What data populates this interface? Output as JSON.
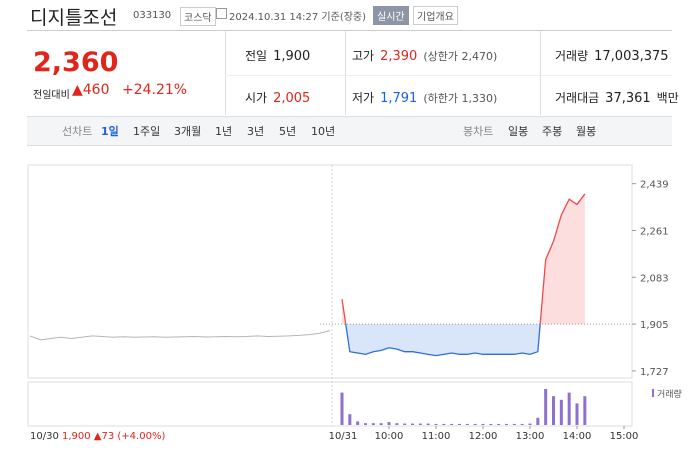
{
  "header": {
    "name": "디지틀조선",
    "code": "033130",
    "market": "코스닥",
    "timestamp": "2024.10.31 14:27 기준(장중)",
    "realtime": "실시간",
    "company_info": "기업개요"
  },
  "quote": {
    "price": "2,360",
    "change_label": "전일대비",
    "change": "▲460",
    "change_rate": "+24.21%"
  },
  "stats": [
    {
      "label": "전일",
      "value": "1,900",
      "color": "#222222"
    },
    {
      "label": "고가",
      "value": "2,390",
      "note": "(상한가 2,470)",
      "color": "#e2241b"
    },
    {
      "label": "거래량",
      "value": "17,003,375",
      "color": "#222222"
    },
    {
      "label": "시가",
      "value": "2,005",
      "color": "#e2241b"
    },
    {
      "label": "저가",
      "value": "1,791",
      "note": "(하한가 1,330)",
      "color": "#1b62d9"
    },
    {
      "label": "거래대금",
      "value": "37,361",
      "unit": "백만",
      "color": "#222222"
    }
  ],
  "tabs": {
    "line_label": "선차트",
    "line": [
      "1일",
      "1주일",
      "3개월",
      "1년",
      "3년",
      "5년",
      "10년"
    ],
    "active_index": 0,
    "candle_label": "봉차트",
    "candle": [
      "일봉",
      "주봉",
      "월봉"
    ]
  },
  "chart": {
    "type": "line",
    "ylim": [
      1700,
      2510
    ],
    "baseline": 1905,
    "yticks": [
      {
        "value": 2439,
        "label": "2,439"
      },
      {
        "value": 2261,
        "label": "2,261"
      },
      {
        "value": 2083,
        "label": "2,083"
      },
      {
        "value": 1905,
        "label": "1,905"
      },
      {
        "value": 1727,
        "label": "1,727"
      }
    ],
    "prev_day": {
      "date": "10/30",
      "summary": "1,900 ▲73 (+4.00%)",
      "color": "#b5b5b5",
      "values": [
        1860,
        1845,
        1850,
        1855,
        1850,
        1855,
        1860,
        1858,
        1855,
        1857,
        1855,
        1856,
        1857,
        1855,
        1856,
        1857,
        1858,
        1856,
        1857,
        1858,
        1857,
        1858,
        1860,
        1858,
        1859,
        1860,
        1862,
        1865,
        1870,
        1880
      ]
    },
    "today": {
      "date": "10/31",
      "up_color": "#f04848",
      "down_color": "#2f6fd6",
      "x": [
        "09:00",
        "09:10",
        "09:20",
        "09:30",
        "09:40",
        "09:50",
        "10:00",
        "10:10",
        "10:20",
        "10:30",
        "10:40",
        "10:50",
        "11:00",
        "11:10",
        "11:20",
        "11:30",
        "11:40",
        "11:50",
        "12:00",
        "12:10",
        "12:20",
        "12:30",
        "12:40",
        "12:50",
        "13:00",
        "13:10",
        "13:20",
        "13:30",
        "13:40",
        "13:50",
        "14:00",
        "14:10"
      ],
      "values": [
        2000,
        1800,
        1795,
        1790,
        1800,
        1805,
        1815,
        1810,
        1800,
        1800,
        1795,
        1790,
        1785,
        1790,
        1795,
        1790,
        1790,
        1795,
        1790,
        1790,
        1790,
        1790,
        1790,
        1795,
        1790,
        1800,
        2150,
        2220,
        2320,
        2380,
        2360,
        2400
      ]
    },
    "xticks": [
      "10:00",
      "11:00",
      "12:00",
      "13:00",
      "14:00",
      "15:00"
    ],
    "volume": {
      "label": "거래량",
      "color": "#8f6fcf",
      "values": [
        0.9,
        0.3,
        0.1,
        0.05,
        0.05,
        0.05,
        0.08,
        0.05,
        0.04,
        0.04,
        0.04,
        0.04,
        0.03,
        0.03,
        0.03,
        0.03,
        0.03,
        0.03,
        0.03,
        0.03,
        0.03,
        0.03,
        0.03,
        0.03,
        0.04,
        0.2,
        1.0,
        0.8,
        0.7,
        0.9,
        0.6,
        0.8
      ]
    }
  }
}
